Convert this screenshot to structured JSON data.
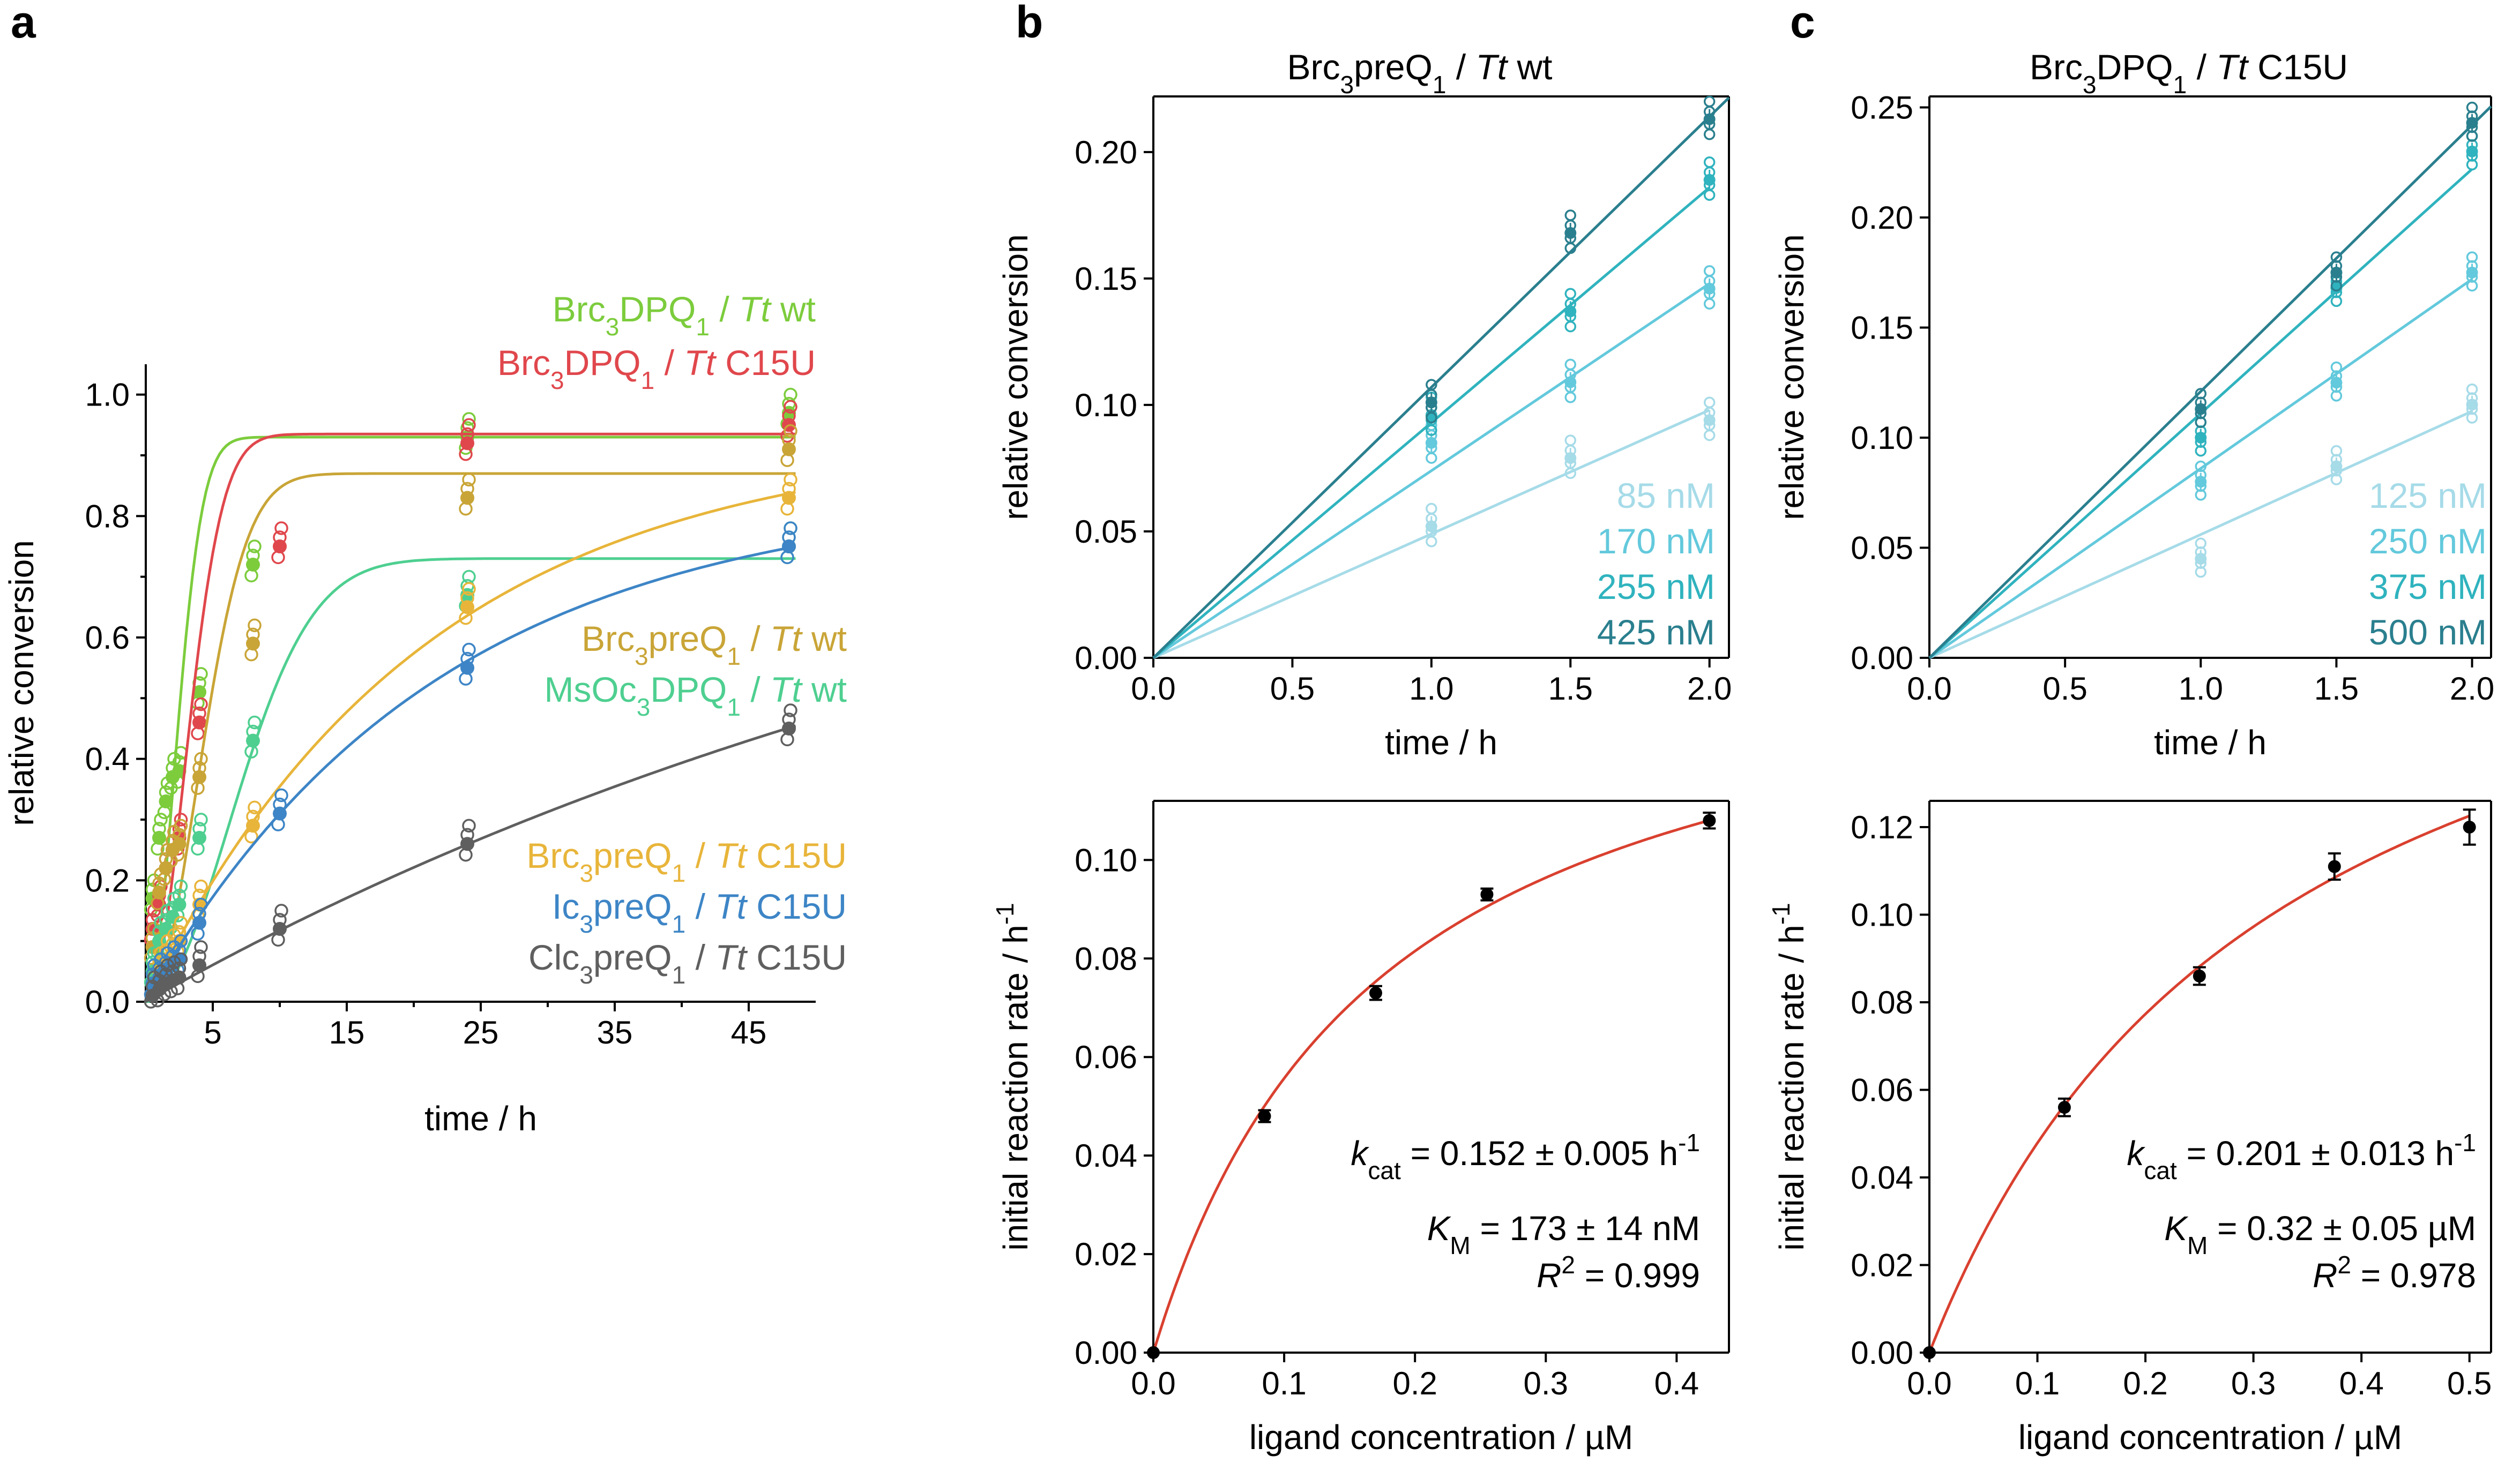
{
  "chart_data": [
    {
      "panel": "a",
      "type": "scatter",
      "xlabel": "time / h",
      "ylabel": "relative conversion",
      "xlim": [
        0,
        50
      ],
      "ylim": [
        0,
        1.05
      ],
      "xticks": [
        5,
        15,
        25,
        35,
        45
      ],
      "xtick_labels": [
        "5",
        "15",
        "25",
        "35",
        "45"
      ],
      "yticks": [
        0,
        0.2,
        0.4,
        0.6,
        0.8,
        1.0
      ],
      "ytick_labels": [
        "0.0",
        "0.2",
        "0.4",
        "0.6",
        "0.8",
        "1.0"
      ],
      "series": [
        {
          "name": "Brc3DPQ1 / Tt wt",
          "ligand": "Brc",
          "sub": "3",
          "mid": "DPQ",
          "sub2": "1",
          "riboswitch": "wt",
          "color": "#7ccc3c",
          "x": [
            0.5,
            1,
            1.5,
            2,
            2.5,
            4,
            8,
            24,
            48
          ],
          "y": [
            0.17,
            0.27,
            0.33,
            0.37,
            0.38,
            0.51,
            0.72,
            0.93,
            0.97
          ],
          "fit": {
            "plateau": 0.93,
            "k": 0.34,
            "n": 2
          }
        },
        {
          "name": "Brc3DPQ1 / Tt C15U",
          "ligand": "Brc",
          "sub": "3",
          "mid": "DPQ",
          "sub2": "1",
          "riboswitch": "C15U",
          "color": "#e0474c",
          "x": [
            0.5,
            1,
            1.5,
            2,
            2.5,
            4,
            10,
            24,
            48
          ],
          "y": [
            0.12,
            0.16,
            0.22,
            0.25,
            0.27,
            0.46,
            0.75,
            0.92,
            0.95
          ],
          "fit": {
            "plateau": 0.935,
            "k": 0.25,
            "n": 2
          }
        },
        {
          "name": "Brc3preQ1 / Tt wt",
          "ligand": "Brc",
          "sub": "3",
          "mid": "preQ",
          "sub2": "1",
          "riboswitch": "wt",
          "color": "#c9a537",
          "x": [
            0.5,
            1,
            1.5,
            2,
            2.5,
            4,
            8,
            24,
            48
          ],
          "y": [
            0.09,
            0.18,
            0.22,
            0.25,
            0.26,
            0.37,
            0.59,
            0.83,
            0.91
          ],
          "fit": {
            "plateau": 0.87,
            "k": 0.19,
            "n": 2
          }
        },
        {
          "name": "MsOc3DPQ1 / Tt wt",
          "ligand": "MsOc",
          "sub": "3",
          "mid": "DPQ",
          "sub2": "1",
          "riboswitch": "wt",
          "color": "#4ecf90",
          "x": [
            0.5,
            1,
            1.5,
            2,
            2.5,
            4,
            8,
            24,
            48
          ],
          "y": [
            0.05,
            0.1,
            0.12,
            0.14,
            0.16,
            0.27,
            0.43,
            0.67,
            0.75
          ],
          "fit": {
            "plateau": 0.73,
            "k": 0.115,
            "n": 2
          }
        },
        {
          "name": "Brc3preQ1 / Tt C15U",
          "ligand": "Brc",
          "sub": "3",
          "mid": "preQ",
          "sub2": "1",
          "riboswitch": "C15U",
          "color": "#e8b53a",
          "x": [
            0.5,
            1,
            1.5,
            2,
            2.5,
            4,
            8,
            24,
            48
          ],
          "y": [
            0.03,
            0.05,
            0.07,
            0.08,
            0.1,
            0.16,
            0.29,
            0.65,
            0.83
          ],
          "fit": {
            "plateau": 0.93,
            "k": 0.048,
            "n": 1
          }
        },
        {
          "name": "Ic3preQ1 / Tt C15U",
          "ligand": "Ic",
          "sub": "3",
          "mid": "preQ",
          "sub2": "1",
          "riboswitch": "C15U",
          "color": "#3d85c6",
          "x": [
            0.5,
            1,
            1.5,
            2,
            2.5,
            4,
            10,
            24,
            48
          ],
          "y": [
            0.03,
            0.04,
            0.05,
            0.06,
            0.07,
            0.13,
            0.31,
            0.55,
            0.75
          ],
          "fit": {
            "plateau": 0.84,
            "k": 0.046,
            "n": 1
          }
        },
        {
          "name": "Clc3preQ1 / Tt C15U",
          "ligand": "Clc",
          "sub": "3",
          "mid": "preQ",
          "sub2": "1",
          "riboswitch": "C15U",
          "color": "#5f5f5f",
          "x": [
            0.5,
            1,
            1.5,
            2,
            2.5,
            4,
            10,
            24,
            48
          ],
          "y": [
            0.01,
            0.02,
            0.03,
            0.035,
            0.04,
            0.06,
            0.12,
            0.26,
            0.45
          ],
          "fit": {
            "plateau": 1.0,
            "k": 0.0125,
            "n": 1
          }
        }
      ],
      "legend_prefix": "Tt"
    },
    {
      "panel": "b",
      "type": "line",
      "title": {
        "pre": "Brc",
        "sub": "3",
        "mid": "preQ",
        "sub2": "1",
        "sep": " / ",
        "it": "Tt",
        "post": " wt"
      },
      "xlabel": "time  / h",
      "ylabel": "relative conversion",
      "xlim": [
        0,
        2.07
      ],
      "ylim": [
        0,
        0.222
      ],
      "xticks": [
        0,
        0.5,
        1,
        1.5,
        2
      ],
      "xtick_labels": [
        "0.0",
        "0.5",
        "1.0",
        "1.5",
        "2.0"
      ],
      "yticks": [
        0,
        0.05,
        0.1,
        0.15,
        0.2
      ],
      "ytick_labels": [
        "0.00",
        "0.05",
        "0.10",
        "0.15",
        "0.20"
      ],
      "series": [
        {
          "name": "85 nM",
          "color": "#a6dbe8",
          "slope": 0.049,
          "points": [
            [
              1,
              0.052
            ],
            [
              1.5,
              0.079
            ],
            [
              2,
              0.094
            ]
          ]
        },
        {
          "name": "170 nM",
          "color": "#63c9dc",
          "slope": 0.074,
          "points": [
            [
              1,
              0.085
            ],
            [
              1.5,
              0.109
            ],
            [
              2,
              0.146
            ]
          ]
        },
        {
          "name": "255 nM",
          "color": "#2fb3be",
          "slope": 0.093,
          "points": [
            [
              1,
              0.096
            ],
            [
              1.5,
              0.137
            ],
            [
              2,
              0.189
            ]
          ]
        },
        {
          "name": "425 nM",
          "color": "#2a7f8e",
          "slope": 0.107,
          "points": [
            [
              1,
              0.101
            ],
            [
              1.5,
              0.168
            ],
            [
              2,
              0.213
            ]
          ]
        }
      ]
    },
    {
      "panel": "c",
      "type": "line",
      "title": {
        "pre": "Brc",
        "sub": "3",
        "mid": "DPQ",
        "sub2": "1",
        "sep": " / ",
        "it": "Tt",
        "post": " C15U"
      },
      "xlabel": "time  / h",
      "ylabel": "relative conversion",
      "xlim": [
        0,
        2.07
      ],
      "ylim": [
        0,
        0.255
      ],
      "xticks": [
        0,
        0.5,
        1,
        1.5,
        2
      ],
      "xtick_labels": [
        "0.0",
        "0.5",
        "1.0",
        "1.5",
        "2.0"
      ],
      "yticks": [
        0,
        0.05,
        0.1,
        0.15,
        0.2,
        0.25
      ],
      "ytick_labels": [
        "0.00",
        "0.05",
        "0.10",
        "0.15",
        "0.20",
        "0.25"
      ],
      "series": [
        {
          "name": "125 nM",
          "color": "#a6dbe8",
          "slope": 0.056,
          "points": [
            [
              1,
              0.045
            ],
            [
              1.5,
              0.087
            ],
            [
              2,
              0.115
            ]
          ]
        },
        {
          "name": "250 nM",
          "color": "#63c9dc",
          "slope": 0.086,
          "points": [
            [
              1,
              0.08
            ],
            [
              1.5,
              0.125
            ],
            [
              2,
              0.175
            ]
          ]
        },
        {
          "name": "375 nM",
          "color": "#2fb3be",
          "slope": 0.111,
          "points": [
            [
              1,
              0.1
            ],
            [
              1.5,
              0.168
            ],
            [
              2,
              0.23
            ]
          ]
        },
        {
          "name": "500 nM",
          "color": "#2a7f8e",
          "slope": 0.121,
          "points": [
            [
              1,
              0.113
            ],
            [
              1.5,
              0.175
            ],
            [
              2,
              0.243
            ]
          ]
        }
      ]
    },
    {
      "panel": "b-lower",
      "type": "scatter",
      "xlabel": "ligand concentration / µM",
      "ylabel": "initial reaction rate / h",
      "ylabel_sup": "-1",
      "xlim": [
        0,
        0.44
      ],
      "ylim": [
        0,
        0.112
      ],
      "xticks": [
        0,
        0.1,
        0.2,
        0.3,
        0.4
      ],
      "xtick_labels": [
        "0.0",
        "0.1",
        "0.2",
        "0.3",
        "0.4"
      ],
      "yticks": [
        0,
        0.02,
        0.04,
        0.06,
        0.08,
        0.1
      ],
      "ytick_labels": [
        "0.00",
        "0.02",
        "0.04",
        "0.06",
        "0.08",
        "0.10"
      ],
      "x": [
        0,
        0.085,
        0.17,
        0.255,
        0.425
      ],
      "y": [
        0,
        0.048,
        0.073,
        0.093,
        0.108
      ],
      "err": [
        0,
        0.0012,
        0.0014,
        0.0012,
        0.0016
      ],
      "fit": {
        "vmax": 0.152,
        "km": 0.173,
        "color": "#d9402f"
      },
      "kcat": " = 0.152 ± 0.005 h",
      "km_text": " = 173 ± 14 nM",
      "r2": " = 0.999"
    },
    {
      "panel": "c-lower",
      "type": "scatter",
      "xlabel": "ligand concentration / µM",
      "ylabel": "initial reaction rate / h",
      "ylabel_sup": "-1",
      "xlim": [
        0,
        0.52
      ],
      "ylim": [
        0,
        0.126
      ],
      "xticks": [
        0,
        0.1,
        0.2,
        0.3,
        0.4,
        0.5
      ],
      "xtick_labels": [
        "0.0",
        "0.1",
        "0.2",
        "0.3",
        "0.4",
        "0.5"
      ],
      "yticks": [
        0,
        0.02,
        0.04,
        0.06,
        0.08,
        0.1,
        0.12
      ],
      "ytick_labels": [
        "0.00",
        "0.02",
        "0.04",
        "0.06",
        "0.08",
        "0.10",
        "0.12"
      ],
      "x": [
        0,
        0.125,
        0.25,
        0.375,
        0.5
      ],
      "y": [
        0,
        0.056,
        0.086,
        0.111,
        0.12
      ],
      "err": [
        0,
        0.002,
        0.002,
        0.003,
        0.004
      ],
      "fit": {
        "vmax": 0.201,
        "km": 0.32,
        "color": "#d9402f"
      },
      "kcat": " = 0.201 ± 0.013 h",
      "km_text": " = 0.32 ± 0.05 µM",
      "r2": " = 0.978"
    }
  ],
  "labels": {
    "panel_a": "a",
    "panel_b": "b",
    "panel_c": "c",
    "kcat_k": "k",
    "kcat_sub": "cat",
    "km_K": "K",
    "km_sub": "M",
    "r2_R": "R",
    "r2_sup": "2",
    "inv_sup": "-1"
  }
}
